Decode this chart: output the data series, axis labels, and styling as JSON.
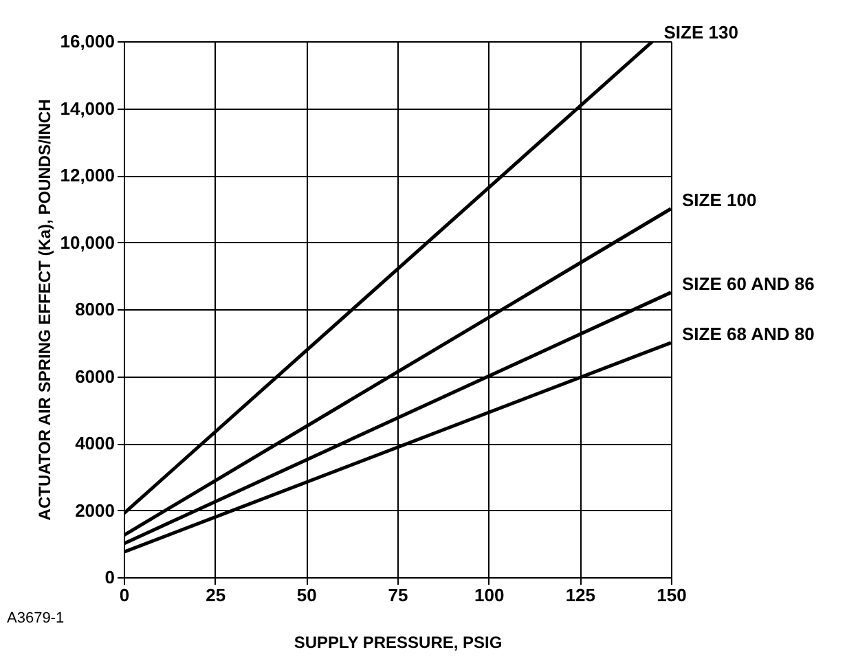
{
  "chart_data": {
    "type": "line",
    "xlabel": "SUPPLY PRESSURE, PSIG",
    "ylabel": "ACTUATOR AIR SPRING EFFECT (Ka), POUNDS/INCH",
    "xlim": [
      0,
      150
    ],
    "xticks": [
      0,
      25,
      50,
      75,
      100,
      125,
      150
    ],
    "ylim": [
      0,
      16000
    ],
    "yticks": [
      0,
      2000,
      4000,
      6000,
      8000,
      {
        "value": 10000,
        "label": "10,000"
      },
      {
        "value": 12000,
        "label": "12,000"
      },
      {
        "value": 14000,
        "label": "14,000"
      },
      {
        "value": 16000,
        "label": "16,000"
      }
    ],
    "grid": true,
    "marker": "none",
    "line_style": "solid",
    "series": [
      {
        "name": "SIZE 130",
        "color": "#000000",
        "x": [
          0,
          145
        ],
        "values": [
          1900,
          16000
        ]
      },
      {
        "name": "SIZE 100",
        "color": "#000000",
        "x": [
          0,
          150
        ],
        "values": [
          1250,
          11000
        ]
      },
      {
        "name": "SIZE 60 AND 86",
        "color": "#000000",
        "x": [
          0,
          150
        ],
        "values": [
          1000,
          8500
        ]
      },
      {
        "name": "SIZE 68 AND 80",
        "color": "#000000",
        "x": [
          0,
          150
        ],
        "values": [
          750,
          7000
        ]
      }
    ],
    "annotations": [
      "A3679-1"
    ]
  }
}
